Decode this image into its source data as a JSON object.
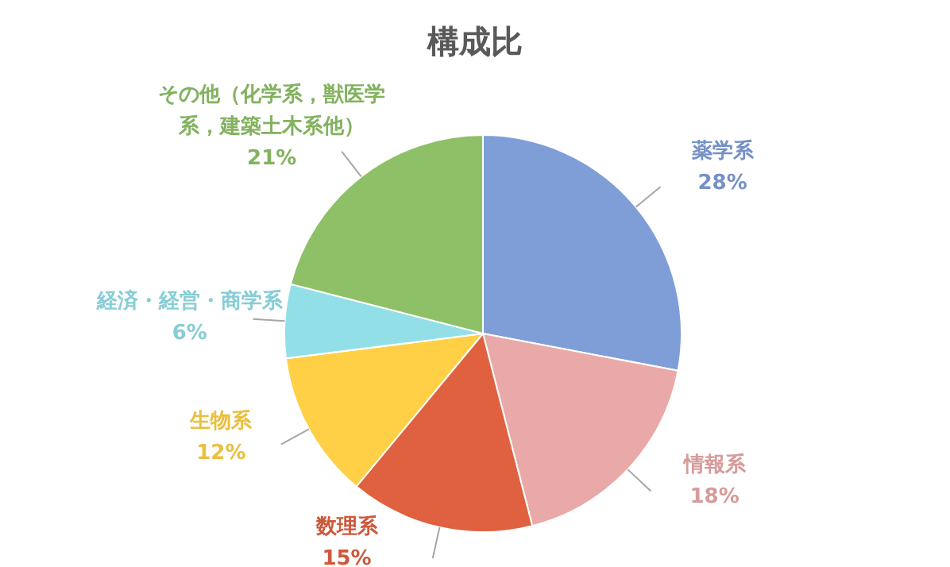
{
  "chart_data": {
    "type": "pie",
    "title": "構成比",
    "categories": [
      "薬学系",
      "情報系",
      "数理系",
      "生物系",
      "経済・経営・商学系",
      "その他（化学系，獣医学系，建築土木系他）"
    ],
    "values": [
      28,
      18,
      15,
      12,
      6,
      21
    ],
    "colors": [
      "#7f9ed8",
      "#eaa9a9",
      "#e0613f",
      "#ffd045",
      "#93dfe8",
      "#8ec167"
    ],
    "value_labels": [
      "28%",
      "18%",
      "15%",
      "12%",
      "6%",
      "21%"
    ],
    "legend": false
  }
}
